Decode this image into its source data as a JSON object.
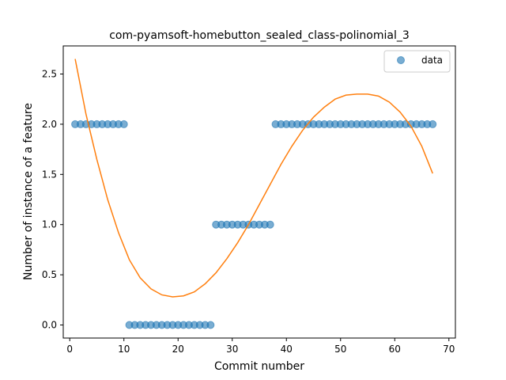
{
  "chart_data": {
    "type": "scatter",
    "title": "com-pyamsoft-homebutton_sealed_class-polinomial_3",
    "xlabel": "Commit number",
    "ylabel": "Number of instance of a feature",
    "xlim": [
      -1.2,
      71.2
    ],
    "ylim": [
      -0.13,
      2.78
    ],
    "xticks": [
      0,
      10,
      20,
      30,
      40,
      50,
      60,
      70
    ],
    "xtick_labels": [
      "0",
      "10",
      "20",
      "30",
      "40",
      "50",
      "60",
      "70"
    ],
    "yticks": [
      0.0,
      0.5,
      1.0,
      1.5,
      2.0,
      2.5
    ],
    "ytick_labels": [
      "0.0",
      "0.5",
      "1.0",
      "1.5",
      "2.0",
      "2.5"
    ],
    "grid": false,
    "legend_position": "top-right",
    "series": [
      {
        "name": "data",
        "kind": "scatter",
        "color": "#1f77b4",
        "points": [
          [
            1,
            2
          ],
          [
            2,
            2
          ],
          [
            3,
            2
          ],
          [
            4,
            2
          ],
          [
            5,
            2
          ],
          [
            6,
            2
          ],
          [
            7,
            2
          ],
          [
            8,
            2
          ],
          [
            9,
            2
          ],
          [
            10,
            2
          ],
          [
            11,
            0
          ],
          [
            12,
            0
          ],
          [
            13,
            0
          ],
          [
            14,
            0
          ],
          [
            15,
            0
          ],
          [
            16,
            0
          ],
          [
            17,
            0
          ],
          [
            18,
            0
          ],
          [
            19,
            0
          ],
          [
            20,
            0
          ],
          [
            21,
            0
          ],
          [
            22,
            0
          ],
          [
            23,
            0
          ],
          [
            24,
            0
          ],
          [
            25,
            0
          ],
          [
            26,
            0
          ],
          [
            27,
            1
          ],
          [
            28,
            1
          ],
          [
            29,
            1
          ],
          [
            30,
            1
          ],
          [
            31,
            1
          ],
          [
            32,
            1
          ],
          [
            33,
            1
          ],
          [
            34,
            1
          ],
          [
            35,
            1
          ],
          [
            36,
            1
          ],
          [
            37,
            1
          ],
          [
            38,
            2
          ],
          [
            39,
            2
          ],
          [
            40,
            2
          ],
          [
            41,
            2
          ],
          [
            42,
            2
          ],
          [
            43,
            2
          ],
          [
            44,
            2
          ],
          [
            45,
            2
          ],
          [
            46,
            2
          ],
          [
            47,
            2
          ],
          [
            48,
            2
          ],
          [
            49,
            2
          ],
          [
            50,
            2
          ],
          [
            51,
            2
          ],
          [
            52,
            2
          ],
          [
            53,
            2
          ],
          [
            54,
            2
          ],
          [
            55,
            2
          ],
          [
            56,
            2
          ],
          [
            57,
            2
          ],
          [
            58,
            2
          ],
          [
            59,
            2
          ],
          [
            60,
            2
          ],
          [
            61,
            2
          ],
          [
            62,
            2
          ],
          [
            63,
            2
          ],
          [
            64,
            2
          ],
          [
            65,
            2
          ],
          [
            66,
            2
          ],
          [
            67,
            2
          ]
        ]
      },
      {
        "kind": "line",
        "color": "#ff7f0e",
        "points": [
          [
            1,
            2.65
          ],
          [
            3,
            2.1
          ],
          [
            5,
            1.65
          ],
          [
            7,
            1.25
          ],
          [
            9,
            0.92
          ],
          [
            11,
            0.65
          ],
          [
            13,
            0.47
          ],
          [
            15,
            0.36
          ],
          [
            17,
            0.3
          ],
          [
            19,
            0.28
          ],
          [
            21,
            0.29
          ],
          [
            23,
            0.33
          ],
          [
            25,
            0.41
          ],
          [
            27,
            0.52
          ],
          [
            29,
            0.66
          ],
          [
            31,
            0.82
          ],
          [
            33,
            1.0
          ],
          [
            35,
            1.2
          ],
          [
            37,
            1.4
          ],
          [
            39,
            1.6
          ],
          [
            41,
            1.78
          ],
          [
            43,
            1.94
          ],
          [
            45,
            2.07
          ],
          [
            47,
            2.17
          ],
          [
            49,
            2.25
          ],
          [
            51,
            2.29
          ],
          [
            53,
            2.3
          ],
          [
            55,
            2.3
          ],
          [
            57,
            2.28
          ],
          [
            59,
            2.22
          ],
          [
            61,
            2.12
          ],
          [
            63,
            1.98
          ],
          [
            65,
            1.78
          ],
          [
            67,
            1.51
          ]
        ]
      }
    ]
  }
}
